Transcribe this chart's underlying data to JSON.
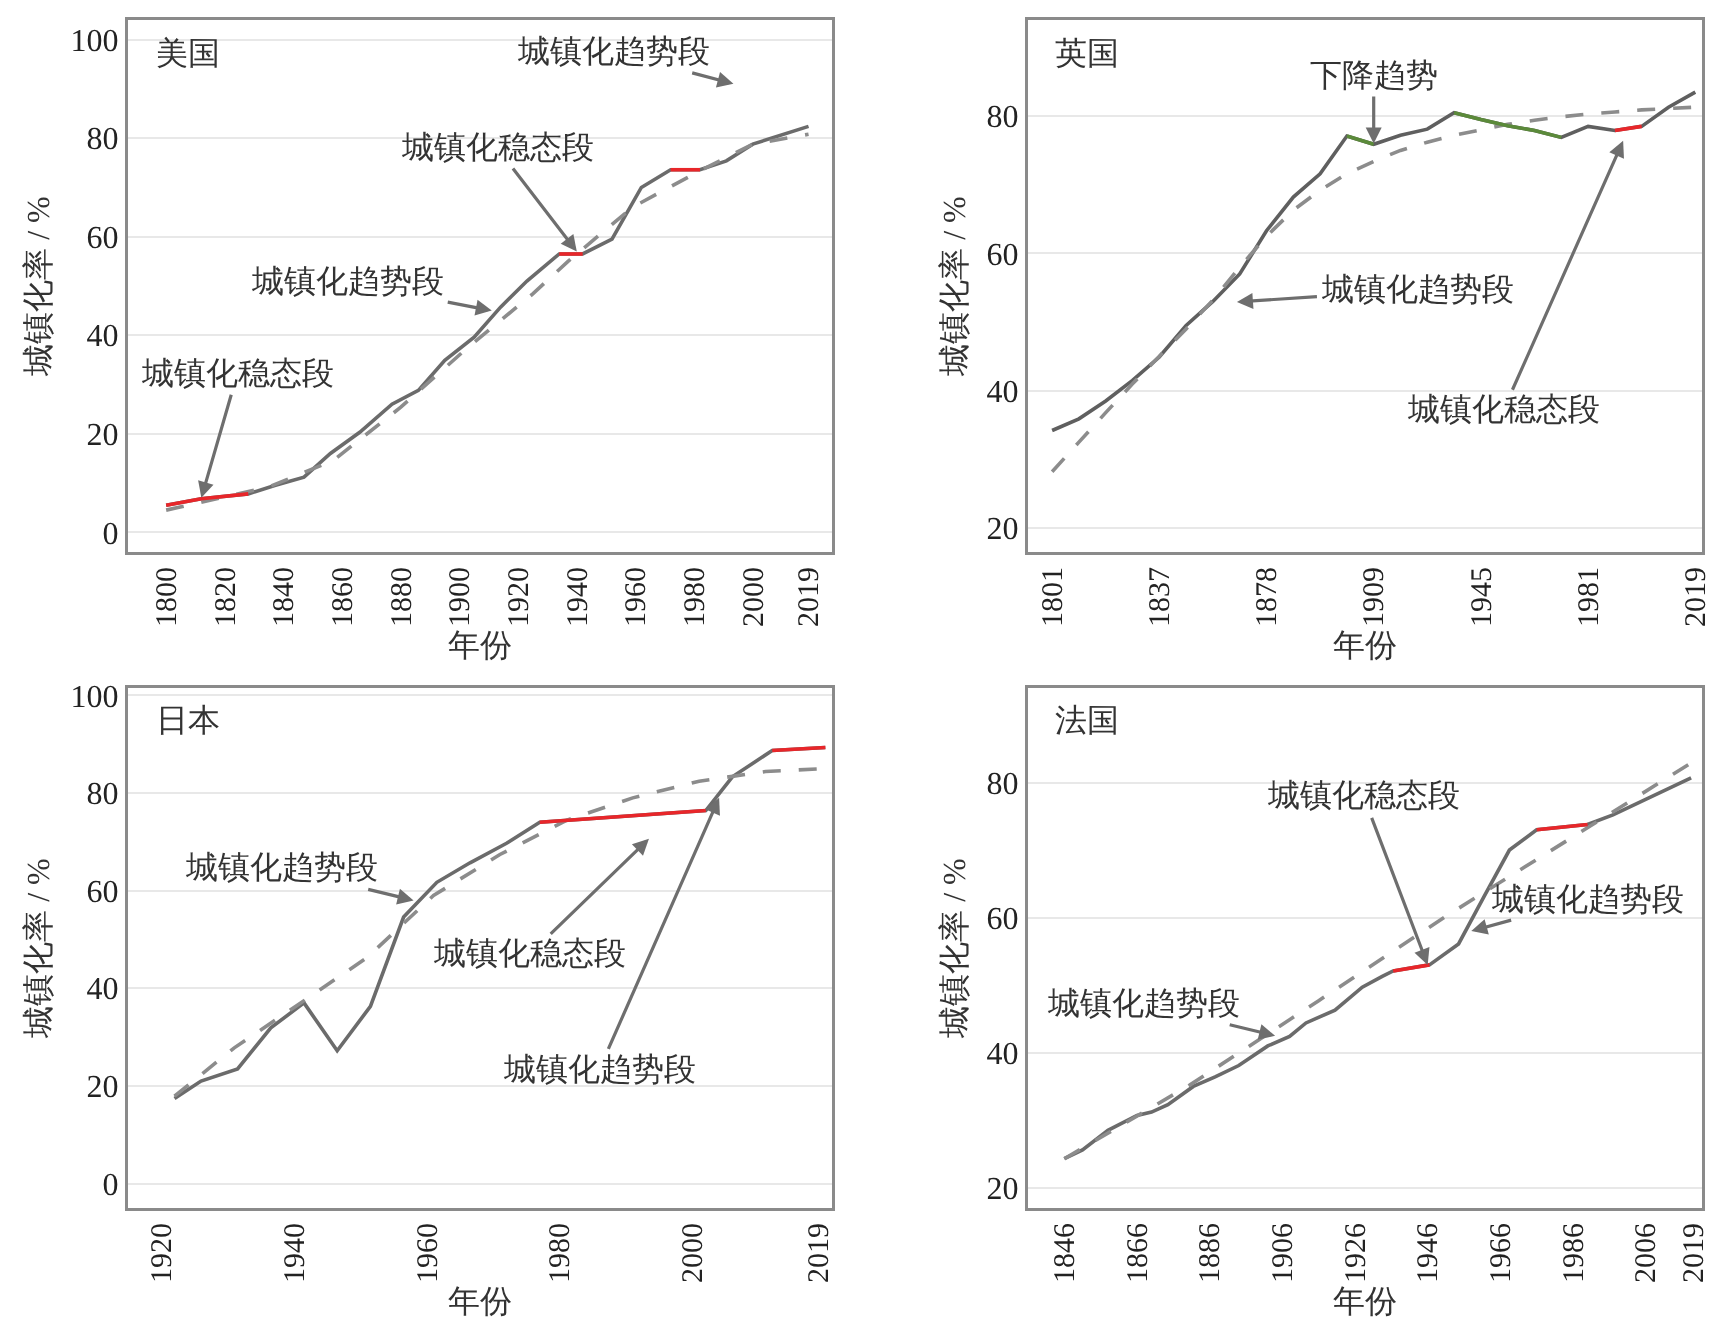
{
  "chart_data": [
    {
      "type": "line",
      "title": "美国",
      "xlabel": "年份",
      "ylabel": "城镇化率 / %",
      "xlim": [
        1787,
        2027
      ],
      "xticks": [
        1800,
        1820,
        1840,
        1860,
        1880,
        1900,
        1920,
        1940,
        1960,
        1980,
        2000,
        2019
      ],
      "ylim": [
        -4,
        104
      ],
      "yticks": [
        0,
        20,
        40,
        60,
        80,
        100
      ],
      "grid": "y",
      "series": [
        {
          "color": "#6b6b6b",
          "x": [
            1800,
            1812,
            1828,
            1837,
            1847,
            1856,
            1866,
            1877,
            1886,
            1895,
            1905,
            1914,
            1923,
            1934,
            1942,
            1952,
            1962,
            1972,
            1982,
            1991,
            2000,
            2019
          ],
          "values": [
            5.5,
            6.8,
            7.8,
            9.5,
            11.2,
            16,
            20.3,
            26,
            28.8,
            34.9,
            39.6,
            45.7,
            51,
            56.5,
            56.5,
            59.5,
            70,
            73.6,
            73.6,
            75.4,
            78.8,
            82.4
          ]
        },
        {
          "color": "#8c8c8c",
          "line_style": "dashed",
          "x": [
            1800,
            1835,
            1857,
            1880,
            1903,
            1925,
            1937,
            1959,
            1982,
            2000,
            2019
          ],
          "values": [
            4.5,
            9.2,
            14.6,
            25.4,
            37.6,
            48.4,
            55,
            66,
            73.4,
            78.8,
            80.8
          ]
        },
        {
          "color": "#e8262a",
          "x": [
            1800,
            1812,
            1828,
            1881,
            1934,
            1942,
            1957,
            1972,
            1982
          ],
          "values": [
            5.5,
            6.8,
            7.8,
            null,
            56.5,
            56.5,
            null,
            73.6,
            73.6
          ]
        }
      ],
      "annotations": [
        {
          "text": "城镇化稳态段",
          "x": 1812,
          "y": 7
        },
        {
          "text": "城镇化趋势段",
          "x": 1911,
          "y": 45
        },
        {
          "text": "城镇化稳态段",
          "x": 1940,
          "y": 57
        },
        "城镇化趋势段"
      ]
    },
    {
      "type": "line",
      "title": "英国",
      "xlabel": "年份",
      "ylabel": "城镇化率 / %",
      "categories": [
        "1801",
        null,
        null,
        null,
        "1837",
        null,
        null,
        null,
        "1878",
        null,
        null,
        null,
        "1909",
        null,
        null,
        null,
        "1945",
        null,
        null,
        null,
        "1981",
        null,
        null,
        null,
        "2019"
      ],
      "ylim": [
        16.5,
        94
      ],
      "yticks": [
        20,
        40,
        60,
        80
      ],
      "grid": "y",
      "series": [
        {
          "color": "#5f5f5f",
          "values": [
            34.2,
            35.9,
            38.5,
            41.5,
            44.9,
            49.5,
            53,
            57,
            63.3,
            68.2,
            71.6,
            77.1,
            75.9,
            77.2,
            78.1,
            80.5,
            79.5,
            78.6,
            77.9,
            76.9,
            78.5,
            77.9,
            78.5,
            81.3,
            83.5
          ]
        },
        {
          "color": "#8c8c8c",
          "line_style": "dashed",
          "values": [
            28.2,
            32.5,
            36.8,
            41,
            45,
            49,
            53.2,
            58,
            62.5,
            66.3,
            69.2,
            71.6,
            73.4,
            75,
            76.2,
            77.2,
            78,
            78.8,
            79.4,
            79.9,
            80.3,
            80.6,
            80.9,
            81.1,
            81.3
          ]
        },
        {
          "color": "#5b8a3a",
          "values": [
            null,
            null,
            null,
            null,
            null,
            null,
            null,
            null,
            null,
            null,
            null,
            77.1,
            75.9,
            null,
            null,
            80.5,
            79.5,
            78.6,
            77.9,
            76.9,
            null,
            null,
            null,
            null,
            null
          ]
        },
        {
          "color": "#e8262a",
          "values": [
            null,
            null,
            null,
            null,
            null,
            null,
            null,
            null,
            null,
            null,
            null,
            null,
            null,
            null,
            null,
            null,
            null,
            null,
            null,
            null,
            null,
            77.9,
            78.5,
            null,
            null
          ]
        }
      ],
      "annotations": [
        {
          "text": "下降趋势",
          "y": 76
        },
        "城镇化趋势段",
        "城镇化稳态段"
      ]
    },
    {
      "type": "line",
      "title": "日本",
      "xlabel": "年份",
      "ylabel": "城镇化率 / %",
      "xlim": [
        1915,
        2021
      ],
      "xticks": [
        1920,
        1940,
        1960,
        1980,
        2000,
        2019
      ],
      "ylim": [
        -5,
        101.5
      ],
      "yticks": [
        0,
        20,
        40,
        60,
        80,
        100
      ],
      "grid": "y",
      "series": [
        {
          "color": "#6b6b6b",
          "x": [
            1922,
            1926,
            1931.5,
            1936.5,
            1941.5,
            1946.5,
            1951.5,
            1956.5,
            1961.5,
            1966.5,
            1972,
            1977,
            2002,
            2006,
            2012,
            2020
          ],
          "values": [
            17.4,
            21,
            23.5,
            31.9,
            37,
            27.2,
            36.3,
            54.6,
            61.7,
            65.7,
            69.7,
            74,
            76.4,
            83.3,
            88.7,
            89.3
          ]
        },
        {
          "color": "#8c8c8c",
          "line_style": "dashed",
          "x": [
            1922,
            1931,
            1941,
            1951,
            1961,
            1971,
            1981,
            1991,
            2001,
            2011,
            2020
          ],
          "values": [
            17.9,
            27.8,
            37,
            46.3,
            59,
            67.4,
            74.4,
            79,
            82.4,
            84.4,
            85
          ]
        },
        {
          "color": "#e8262a",
          "x": [
            1977,
            2002,
            2007,
            2012,
            2020
          ],
          "values": [
            74,
            76.4,
            null,
            88.7,
            89.3
          ]
        }
      ],
      "annotations": [
        {
          "text": "城镇化趋势段",
          "x": 1958,
          "y": 58
        },
        "城镇化稳态段",
        {
          "text": "城镇化趋势段",
          "x": 2004,
          "y": 79
        }
      ]
    },
    {
      "type": "line",
      "title": "法国",
      "xlabel": "年份",
      "ylabel": "城镇化率 / %",
      "xlim": [
        1836,
        2021.5
      ],
      "xticks": [
        1846,
        1866,
        1886,
        1906,
        1926,
        1946,
        1966,
        1986,
        2006,
        2019
      ],
      "ylim": [
        17,
        94
      ],
      "yticks": [
        20,
        40,
        60,
        80
      ],
      "grid": "y",
      "series": [
        {
          "color": "#6b6b6b",
          "x": [
            1846,
            1851,
            1858,
            1866,
            1870,
            1874.5,
            1881.5,
            1887.5,
            1894,
            1902,
            1908,
            1912.5,
            1920.5,
            1928,
            1933.5,
            1936.5,
            1946.5,
            1954.5,
            1961.5,
            1968.5,
            1976,
            1990,
            1997,
            2018.5
          ],
          "values": [
            24.3,
            25.6,
            28.5,
            30.7,
            31.2,
            32.3,
            35,
            36.4,
            38.1,
            41,
            42.4,
            44.4,
            46.3,
            49.7,
            51.3,
            52.1,
            53,
            56.1,
            63.1,
            70,
            73,
            73.8,
            75.2,
            80.7
          ]
        },
        {
          "color": "#8c8c8c",
          "line_style": "dashed",
          "x": [
            1846,
            1880.5,
            1916,
            1951,
            1987,
            2018.5
          ],
          "values": [
            24.3,
            35.2,
            47.7,
            60.2,
            72.3,
            82.9
          ]
        },
        {
          "color": "#e8262a",
          "x": [
            1936.5,
            1946.5,
            1960,
            1976,
            1990
          ],
          "values": [
            52.1,
            53,
            null,
            73,
            73.8
          ]
        }
      ],
      "annotations": [
        {
          "text": "城镇化稳态段",
          "x": 1946,
          "y": 53
        },
        {
          "text": "城镇化趋势段",
          "x": 1958,
          "y": 58
        },
        {
          "text": "城镇化趋势段",
          "x": 1904,
          "y": 42.5
        }
      ]
    }
  ]
}
